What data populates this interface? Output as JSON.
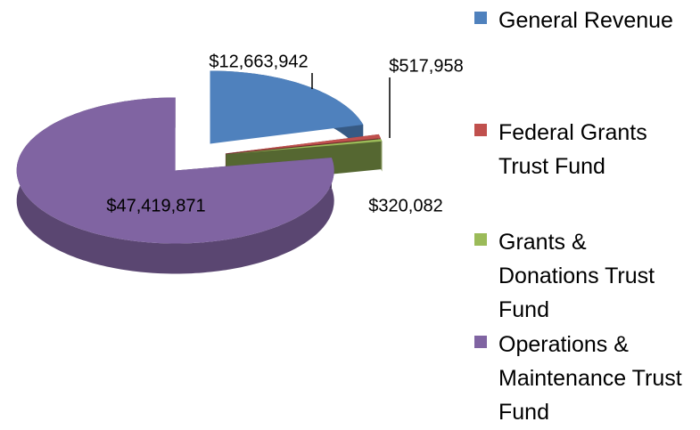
{
  "chart_data": {
    "type": "pie",
    "categories": [
      "General Revenue",
      "Federal Grants Trust Fund",
      "Grants & Donations Trust Fund",
      "Operations & Maintenance Trust Fund"
    ],
    "values": [
      12663942,
      517958,
      320082,
      47419871
    ],
    "value_labels": [
      "$12,663,942",
      "$517,958",
      "$320,082",
      "$47,419,871"
    ],
    "colors": [
      "#4f81bd",
      "#c0504d",
      "#9bbb59",
      "#8064a2"
    ],
    "legend": "right"
  }
}
